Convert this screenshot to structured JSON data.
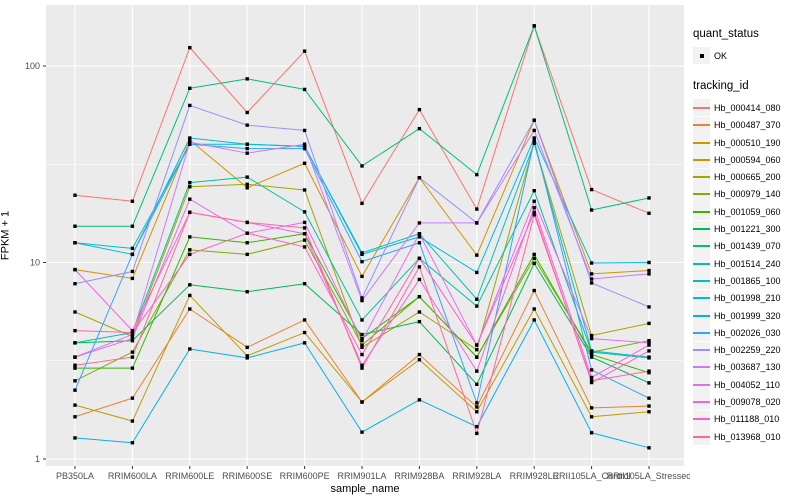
{
  "chart_data": {
    "type": "line",
    "title": "",
    "xlabel": "sample_name",
    "ylabel": "FPKM + 1",
    "y_scale": "log10",
    "y_ticks": [
      "1",
      "10",
      "100"
    ],
    "y_tick_values": [
      1,
      10,
      100
    ],
    "y_minor_values": [
      3.1623,
      31.623
    ],
    "ylim": [
      0.92,
      202
    ],
    "grid": "on",
    "legend_position": "right",
    "point_color": "#000000",
    "panel_color": "#EBEBEB",
    "categories": [
      "PB350LA",
      "RRIM600LA",
      "RRIM600LE",
      "RRIM600SE",
      "RRIM600PE",
      "RRIM901LA",
      "RRIM928BA",
      "RRIM928LA",
      "RRIM928LE",
      "RRII105LA_Control",
      "RRII105LA_Stressed"
    ],
    "series": [
      {
        "name": "Hb_000414_080",
        "color": "#F8766D",
        "values": [
          22,
          20.5,
          124,
          58,
          119,
          20,
          60,
          18.7,
          160,
          23.5,
          17.8
        ]
      },
      {
        "name": "Hb_000487_370",
        "color": "#EA8331",
        "values": [
          1.64,
          2.04,
          5.8,
          3.7,
          5.1,
          1.95,
          3.4,
          1.84,
          7.2,
          1.82,
          1.86
        ]
      },
      {
        "name": "Hb_000510_190",
        "color": "#D89000",
        "values": [
          9.2,
          8.3,
          42,
          24,
          32,
          8.5,
          27,
          10.9,
          53,
          8.75,
          9.1
        ]
      },
      {
        "name": "Hb_000594_060",
        "color": "#C09B00",
        "values": [
          1.88,
          1.56,
          6.8,
          3.35,
          4.4,
          1.95,
          3.2,
          1.74,
          5.8,
          1.64,
          1.74
        ]
      },
      {
        "name": "Hb_000665_200",
        "color": "#A3A500",
        "values": [
          5.6,
          4.2,
          24.3,
          25,
          23.4,
          3.7,
          5.6,
          3.6,
          40.5,
          4.25,
          4.9
        ]
      },
      {
        "name": "Hb_000979_140",
        "color": "#7CAE00",
        "values": [
          2.5,
          3.5,
          11.6,
          11,
          13,
          3.8,
          6.7,
          3.3,
          10.5,
          3.5,
          4.0
        ]
      },
      {
        "name": "Hb_001059_060",
        "color": "#39B600",
        "values": [
          2.9,
          2.9,
          13.5,
          12.6,
          14,
          4.1,
          6.7,
          3.3,
          11,
          3.4,
          2.75
        ]
      },
      {
        "name": "Hb_001221_300",
        "color": "#00BB4E",
        "values": [
          3.9,
          4.0,
          7.7,
          7.1,
          7.8,
          4.3,
          5.0,
          2.4,
          9.9,
          3.3,
          2.44
        ]
      },
      {
        "name": "Hb_001439_070",
        "color": "#00BF7D",
        "values": [
          15.3,
          15.3,
          77,
          86,
          76,
          31,
          48,
          28,
          160,
          18.5,
          21.3
        ]
      },
      {
        "name": "Hb_001514_240",
        "color": "#00C1A3",
        "values": [
          3.9,
          4.4,
          25.5,
          27.2,
          18.1,
          5.1,
          10.5,
          6.0,
          23.2,
          3.5,
          3.27
        ]
      },
      {
        "name": "Hb_001865_100",
        "color": "#00BFC4",
        "values": [
          12.6,
          11.8,
          40,
          40,
          39,
          11.2,
          14,
          6.5,
          40.5,
          3.55,
          3.3
        ]
      },
      {
        "name": "Hb_001998_210",
        "color": "#00BAE0",
        "values": [
          12.6,
          11.0,
          43,
          40,
          39,
          11.0,
          13.5,
          8.9,
          43,
          9.94,
          10.0
        ]
      },
      {
        "name": "Hb_001999_320",
        "color": "#00B0F6",
        "values": [
          1.28,
          1.21,
          3.63,
          3.27,
          3.9,
          1.37,
          2.0,
          1.46,
          5.1,
          1.36,
          1.14
        ]
      },
      {
        "name": "Hb_002026_030",
        "color": "#35A2FF",
        "values": [
          2.24,
          11,
          40,
          38,
          38,
          10.1,
          12.6,
          1.93,
          42,
          2.84,
          2.04
        ]
      },
      {
        "name": "Hb_002259_220",
        "color": "#9590FF",
        "values": [
          7.8,
          9.0,
          63,
          50,
          47,
          6.6,
          27,
          15.9,
          53,
          7.87,
          5.94
        ]
      },
      {
        "name": "Hb_003687_130",
        "color": "#C77CFF",
        "values": [
          3.3,
          4.3,
          41,
          36,
          40,
          6.4,
          15.9,
          15.9,
          47,
          8.24,
          8.75
        ]
      },
      {
        "name": "Hb_004052_110",
        "color": "#E76BF3",
        "values": [
          3.3,
          4.1,
          21,
          14.1,
          16,
          4.0,
          14,
          3.8,
          20.5,
          4.1,
          3.9
        ]
      },
      {
        "name": "Hb_009078_020",
        "color": "#FA62DB",
        "values": [
          9.2,
          4.5,
          18,
          16,
          14,
          3.0,
          8.2,
          2.8,
          19,
          2.6,
          3.8
        ]
      },
      {
        "name": "Hb_011188_010",
        "color": "#FF61C3",
        "values": [
          4.5,
          4.4,
          11,
          14.1,
          12,
          3.4,
          10.5,
          3.8,
          18,
          2.45,
          3.55
        ]
      },
      {
        "name": "Hb_013968_010",
        "color": "#FF67A4",
        "values": [
          3.0,
          3.3,
          18,
          16,
          15,
          2.9,
          9.5,
          1.35,
          17.5,
          2.5,
          2.8
        ]
      }
    ]
  },
  "legend": {
    "quant_status_title": "quant_status",
    "quant_status_items": [
      {
        "label": "OK",
        "marker": "point",
        "color": "#000000"
      }
    ],
    "tracking_id_title": "tracking_id"
  }
}
